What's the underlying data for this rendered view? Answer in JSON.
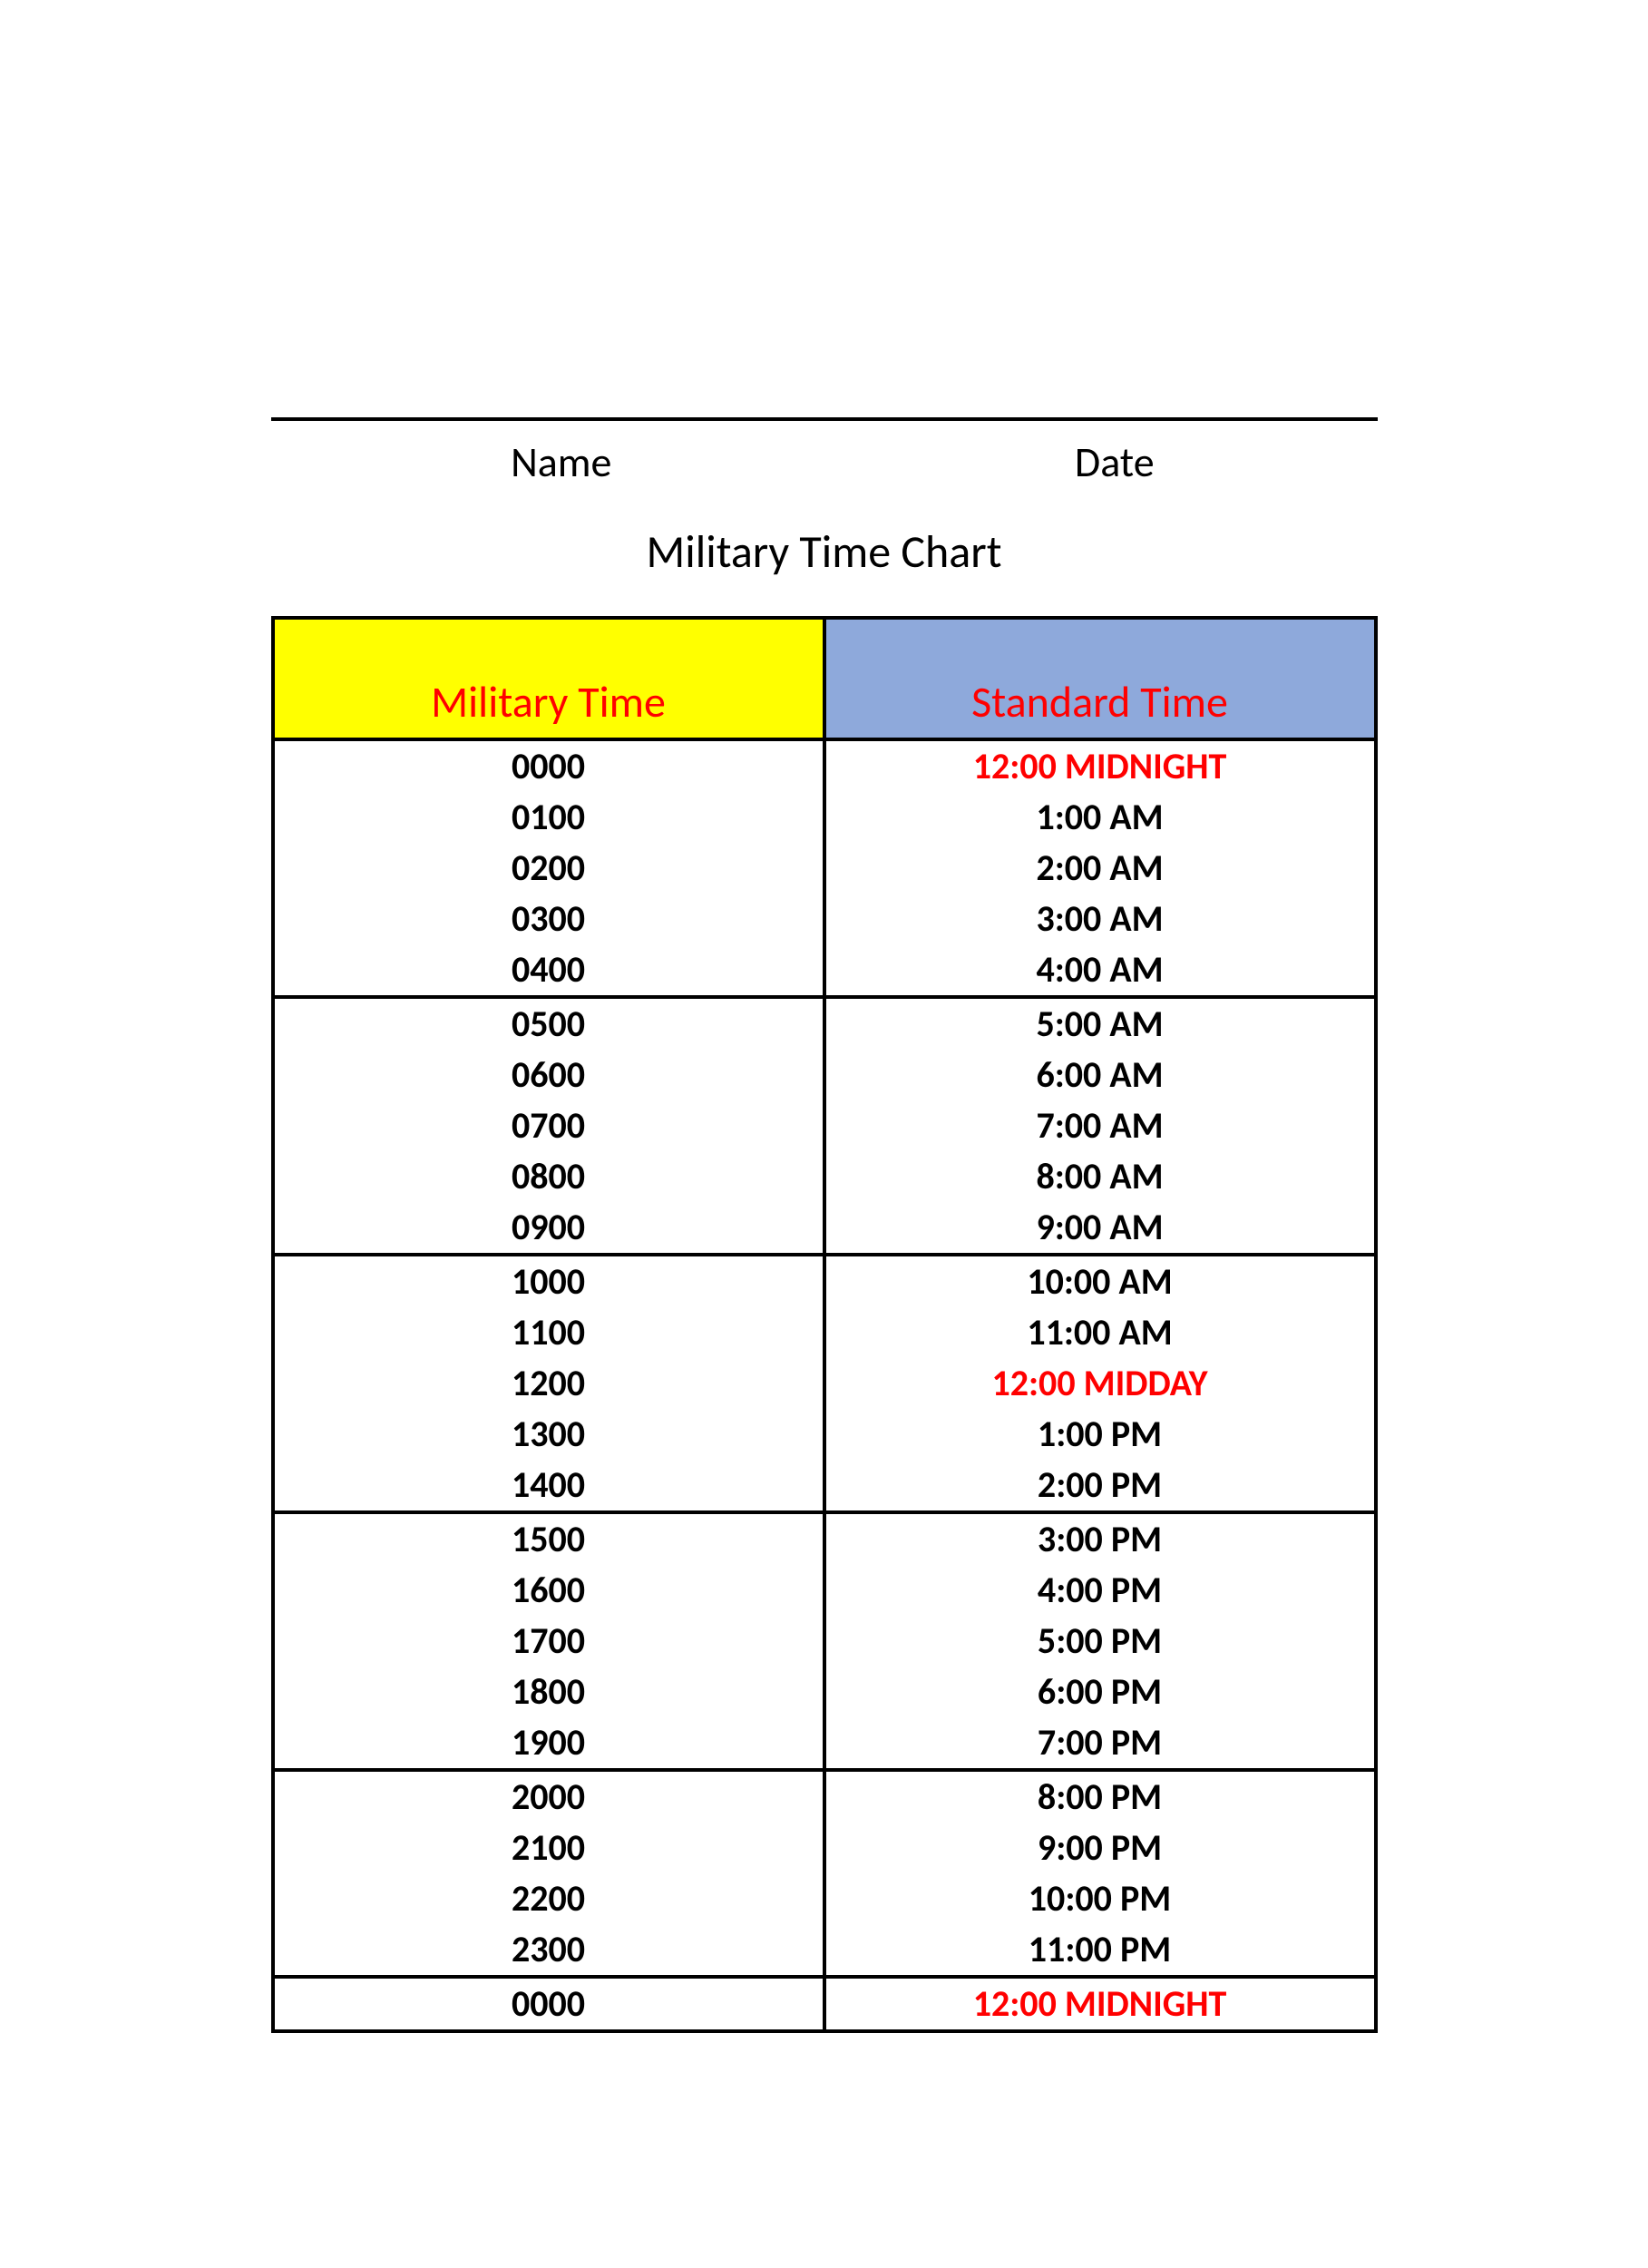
{
  "meta": {
    "name_label": "Name",
    "date_label": "Date"
  },
  "title": "Military Time Chart",
  "table": {
    "headers": {
      "military": "Military Time",
      "standard": "Standard Time",
      "military_bg": "#ffff00",
      "standard_bg": "#8ea9db",
      "header_text_color": "#ff0000",
      "header_fontsize": 48
    },
    "body_fontsize": 40,
    "body_fontweight": "bold",
    "body_text_color": "#000000",
    "highlight_color": "#ff0000",
    "border_color": "#000000",
    "border_width": 4,
    "group_size": 5,
    "rows": [
      {
        "military": "0000",
        "standard": "12:00 MIDNIGHT",
        "highlight": true,
        "group_start": true
      },
      {
        "military": "0100",
        "standard": "1:00 AM",
        "highlight": false
      },
      {
        "military": "0200",
        "standard": "2:00 AM",
        "highlight": false
      },
      {
        "military": "0300",
        "standard": "3:00 AM",
        "highlight": false
      },
      {
        "military": "0400",
        "standard": "4:00 AM",
        "highlight": false,
        "group_end": true
      },
      {
        "military": "0500",
        "standard": "5:00 AM",
        "highlight": false,
        "group_start": true
      },
      {
        "military": "0600",
        "standard": "6:00 AM",
        "highlight": false
      },
      {
        "military": "0700",
        "standard": "7:00 AM",
        "highlight": false
      },
      {
        "military": "0800",
        "standard": "8:00 AM",
        "highlight": false
      },
      {
        "military": "0900",
        "standard": "9:00 AM",
        "highlight": false,
        "group_end": true
      },
      {
        "military": "1000",
        "standard": "10:00 AM",
        "highlight": false,
        "group_start": true
      },
      {
        "military": "1100",
        "standard": "11:00 AM",
        "highlight": false
      },
      {
        "military": "1200",
        "standard": "12:00 MIDDAY",
        "highlight": true
      },
      {
        "military": "1300",
        "standard": "1:00 PM",
        "highlight": false
      },
      {
        "military": "1400",
        "standard": "2:00 PM",
        "highlight": false,
        "group_end": true
      },
      {
        "military": "1500",
        "standard": "3:00 PM",
        "highlight": false,
        "group_start": true
      },
      {
        "military": "1600",
        "standard": "4:00 PM",
        "highlight": false
      },
      {
        "military": "1700",
        "standard": "5:00 PM",
        "highlight": false
      },
      {
        "military": "1800",
        "standard": "6:00 PM",
        "highlight": false
      },
      {
        "military": "1900",
        "standard": "7:00 PM",
        "highlight": false,
        "group_end": true
      },
      {
        "military": "2000",
        "standard": "8:00 PM",
        "highlight": false,
        "group_start": true
      },
      {
        "military": "2100",
        "standard": "9:00 PM",
        "highlight": false
      },
      {
        "military": "2200",
        "standard": "10:00 PM",
        "highlight": false
      },
      {
        "military": "2300",
        "standard": "11:00 PM",
        "highlight": false,
        "group_end": true
      },
      {
        "military": "0000",
        "standard": "12:00 MIDNIGHT",
        "highlight": true,
        "group_start": true,
        "group_end": true
      }
    ]
  }
}
